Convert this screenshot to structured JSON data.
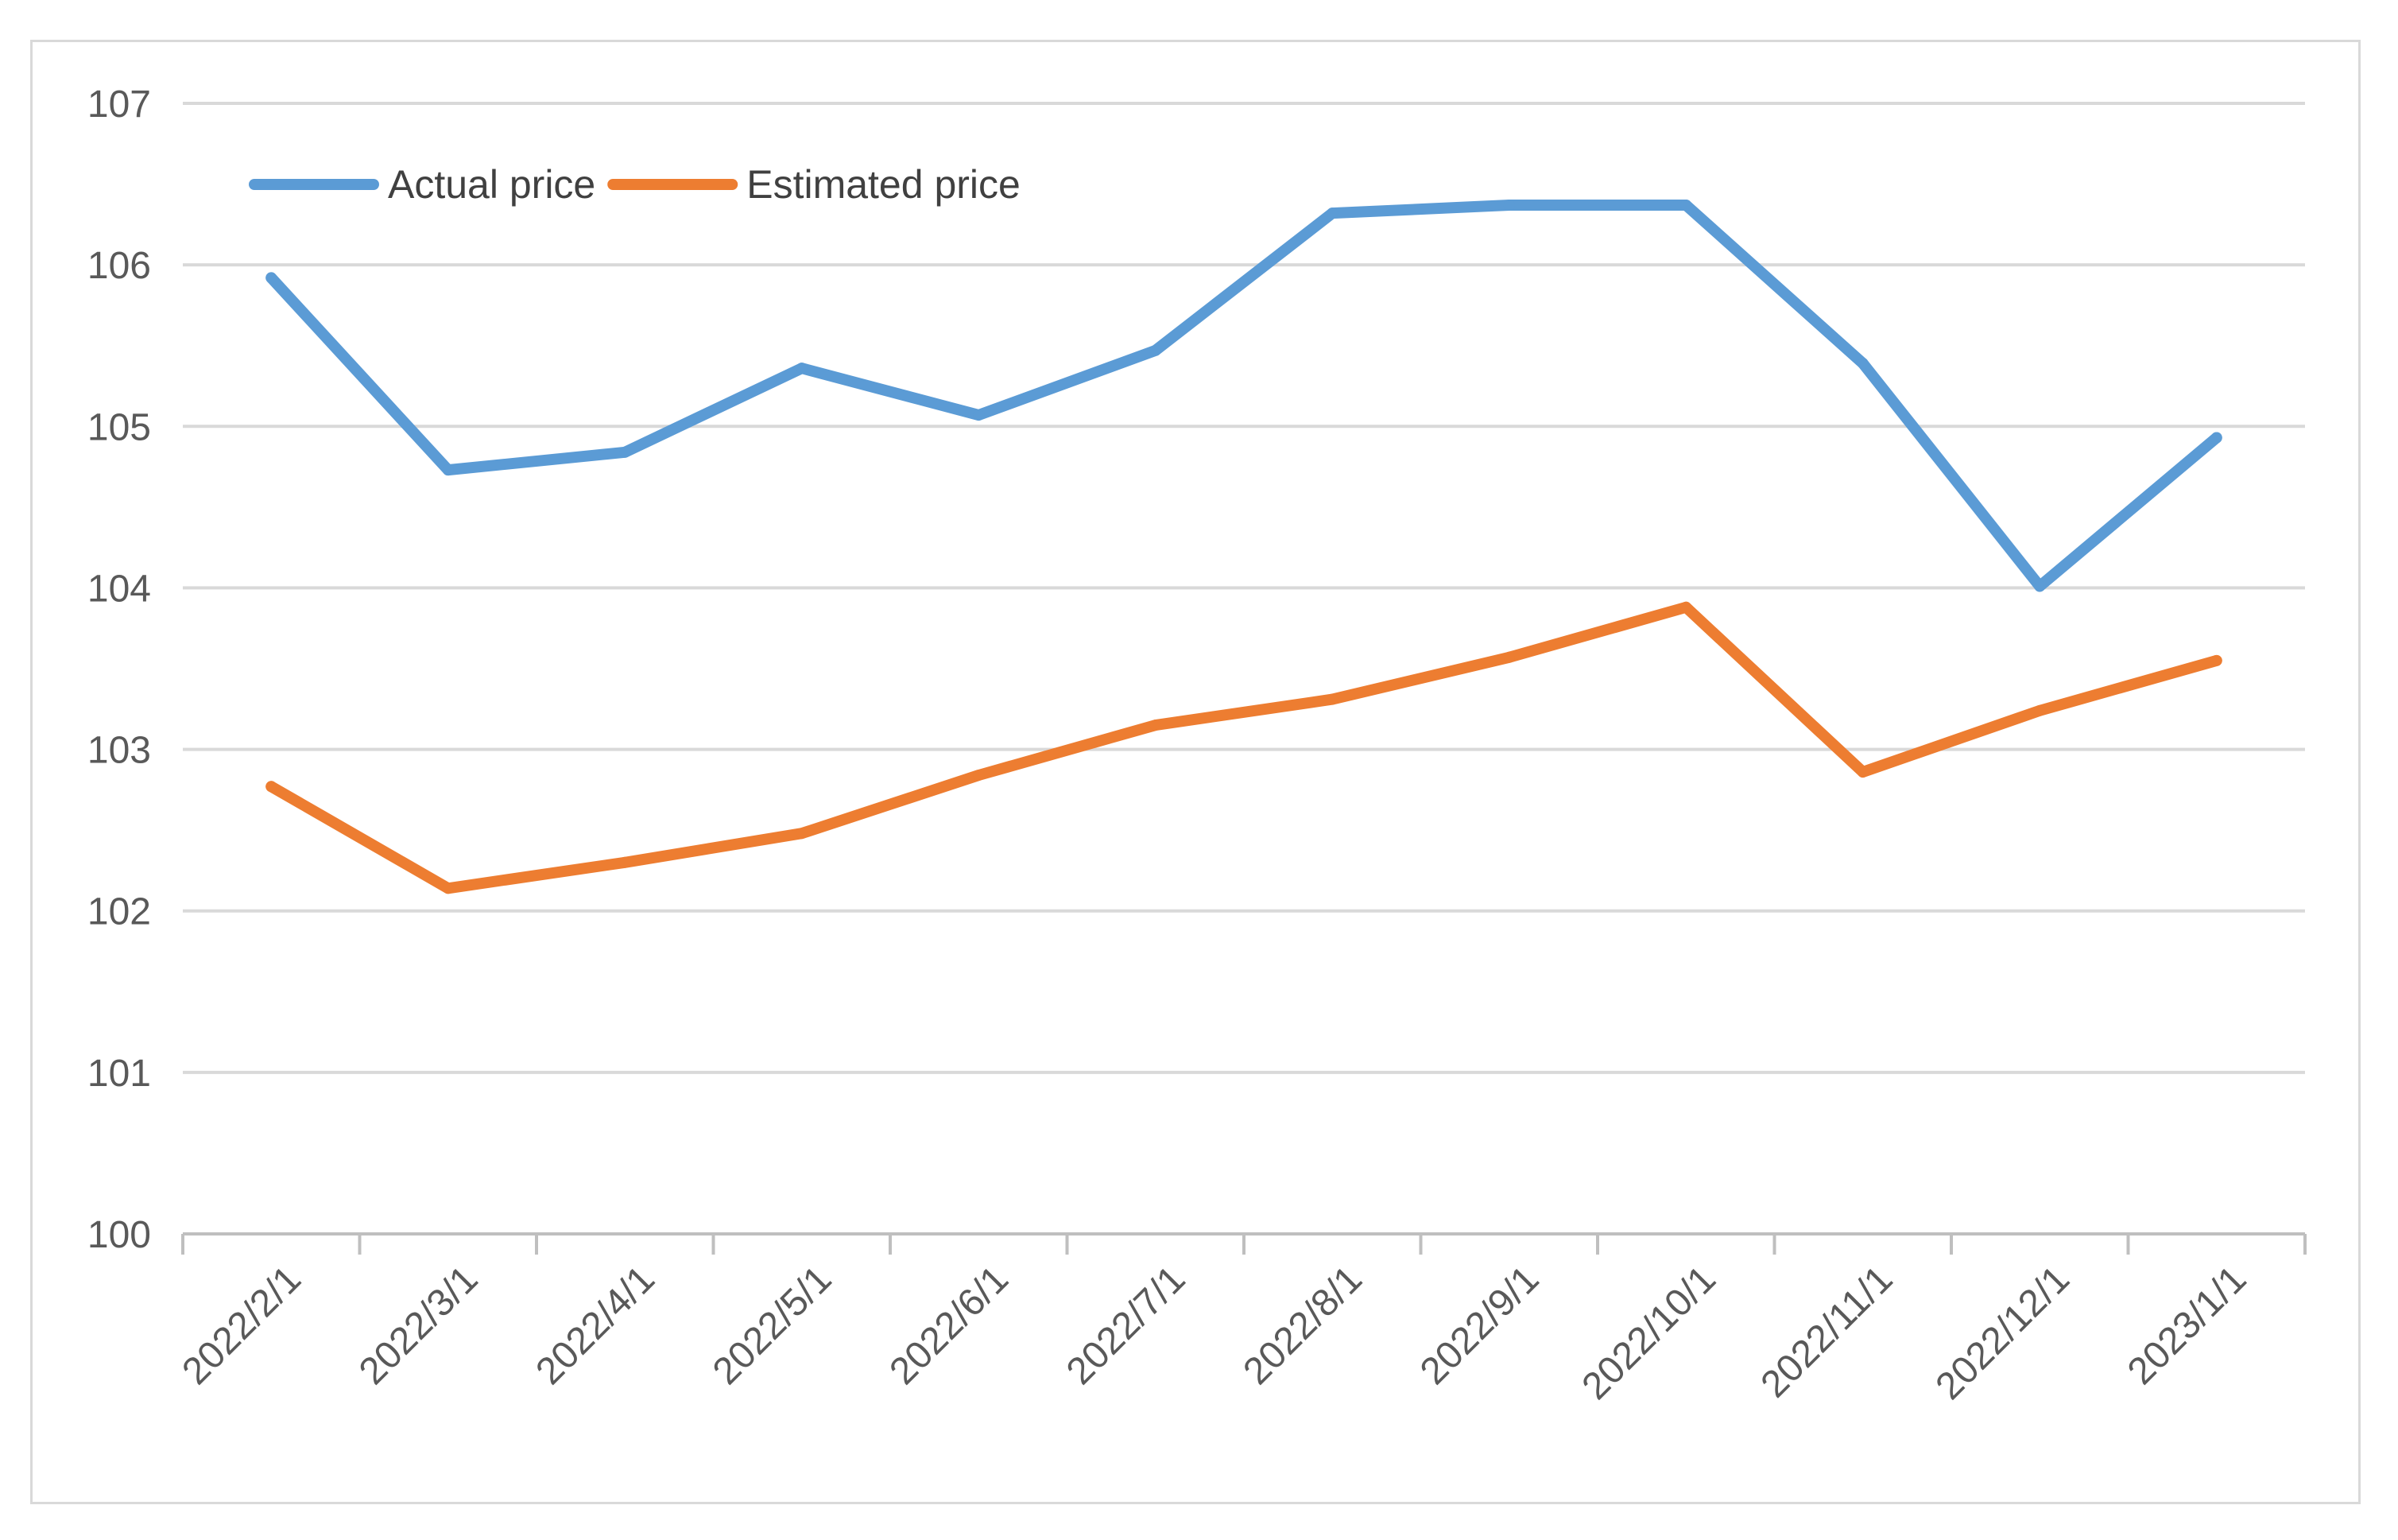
{
  "chart_data": {
    "type": "line",
    "title": "",
    "xlabel": "",
    "ylabel": "",
    "categories": [
      "2022/2/1",
      "2022/3/1",
      "2022/4/1",
      "2022/5/1",
      "2022/6/1",
      "2022/7/1",
      "2022/8/1",
      "2022/9/1",
      "2022/10/1",
      "2022/11/1",
      "2022/12/1",
      "2023/1/1"
    ],
    "ylim": [
      100,
      107
    ],
    "yticks": [
      100,
      101,
      102,
      103,
      104,
      105,
      106,
      107
    ],
    "grid": true,
    "legend_position": "top-left",
    "series": [
      {
        "name": "Actual price",
        "color": "#5b9bd5",
        "values": [
          105.92,
          104.73,
          104.84,
          105.36,
          105.07,
          105.47,
          106.32,
          106.37,
          106.37,
          105.39,
          104.01,
          104.93
        ]
      },
      {
        "name": "Estimated price",
        "color": "#ed7d31",
        "values": [
          102.77,
          102.14,
          102.3,
          102.48,
          102.84,
          103.15,
          103.31,
          103.57,
          103.88,
          102.86,
          103.24,
          103.55
        ]
      }
    ]
  }
}
